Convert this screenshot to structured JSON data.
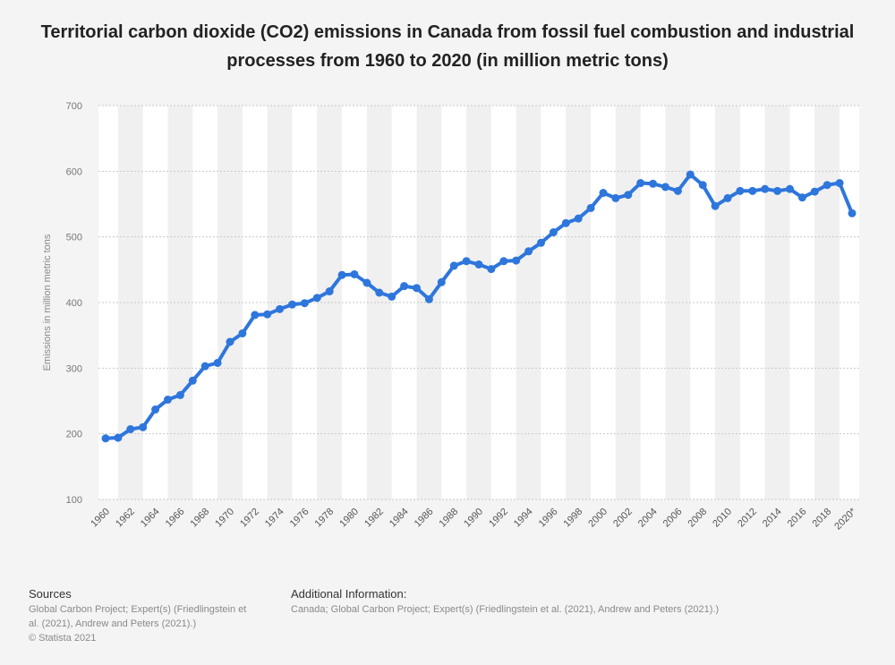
{
  "chart_data": {
    "type": "line",
    "title": "Territorial carbon dioxide (CO2) emissions in Canada from fossil fuel combustion and industrial processes from 1960 to 2020 (in million metric tons)",
    "xlabel": "",
    "ylabel": "Emissions in million metric tons",
    "ylim": [
      100,
      700
    ],
    "yticks": [
      100,
      200,
      300,
      400,
      500,
      600,
      700
    ],
    "grid": true,
    "x_tick_labels": [
      "1960",
      "1962",
      "1964",
      "1966",
      "1968",
      "1970",
      "1972",
      "1974",
      "1976",
      "1978",
      "1980",
      "1982",
      "1984",
      "1986",
      "1988",
      "1990",
      "1992",
      "1994",
      "1996",
      "1998",
      "2000",
      "2002",
      "2004",
      "2006",
      "2008",
      "2010",
      "2012",
      "2014",
      "2016",
      "2018",
      "2020*"
    ],
    "x": [
      1960,
      1961,
      1962,
      1963,
      1964,
      1965,
      1966,
      1967,
      1968,
      1969,
      1970,
      1971,
      1972,
      1973,
      1974,
      1975,
      1976,
      1977,
      1978,
      1979,
      1980,
      1981,
      1982,
      1983,
      1984,
      1985,
      1986,
      1987,
      1988,
      1989,
      1990,
      1991,
      1992,
      1993,
      1994,
      1995,
      1996,
      1997,
      1998,
      1999,
      2000,
      2001,
      2002,
      2003,
      2004,
      2005,
      2006,
      2007,
      2008,
      2009,
      2010,
      2011,
      2012,
      2013,
      2014,
      2015,
      2016,
      2017,
      2018,
      2019,
      2020
    ],
    "values": [
      193,
      194,
      207,
      210,
      237,
      252,
      259,
      281,
      303,
      308,
      340,
      353,
      381,
      382,
      390,
      397,
      399,
      407,
      417,
      442,
      443,
      430,
      415,
      409,
      425,
      422,
      405,
      431,
      456,
      463,
      458,
      451,
      463,
      464,
      478,
      491,
      507,
      521,
      528,
      544,
      567,
      559,
      564,
      582,
      581,
      576,
      570,
      595,
      579,
      547,
      559,
      570,
      570,
      573,
      570,
      573,
      560,
      569,
      579,
      582,
      536
    ],
    "series_color": "#2e76dc"
  },
  "footer": {
    "sources_heading": "Sources",
    "sources_line1": "Global Carbon Project; Expert(s) (Friedlingstein et",
    "sources_line2": "al. (2021), Andrew and Peters (2021).)",
    "sources_line3": "© Statista 2021",
    "info_heading": "Additional Information:",
    "info_text": "Canada; Global Carbon Project; Expert(s) (Friedlingstein et al. (2021), Andrew and Peters (2021).)"
  }
}
